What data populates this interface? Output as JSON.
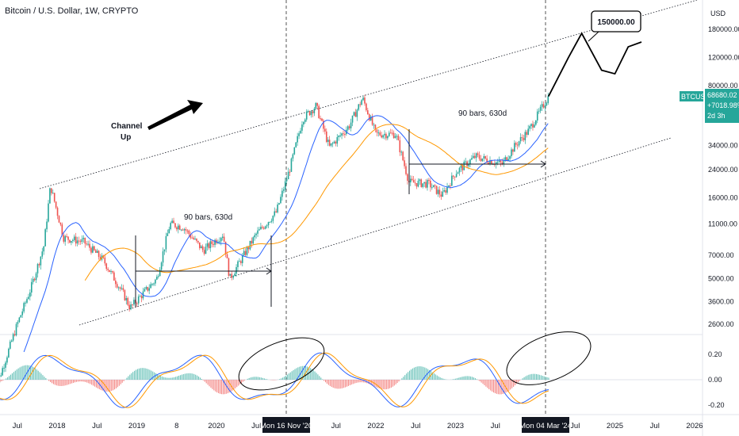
{
  "header": {
    "title": "Bitcoin / U.S. Dollar, 1W, CRYPTO"
  },
  "axis": {
    "currency": "USD",
    "price_ticks": [
      "180000.00",
      "120000.00",
      "80000.00",
      "34000.00",
      "24000.00",
      "16000.00",
      "11000.00",
      "7000.00",
      "5000.00",
      "3600.00",
      "2600.00"
    ],
    "osc_ticks": [
      "0.20",
      "0.00",
      "-0.20"
    ],
    "x_ticks": [
      "Jul",
      "2018",
      "Jul",
      "2019",
      "8",
      "2020",
      "Jul",
      "Jul",
      "2022",
      "Jul",
      "2023",
      "Jul",
      "Jul",
      "2025",
      "Jul",
      "2026"
    ],
    "x_highlight_1": "Mon 16 Nov '20",
    "x_highlight_2": "Mon 04 Mar '24"
  },
  "price_tag": {
    "symbol": "BTCUSD",
    "price": "68680.02",
    "change": "+7018.98%",
    "countdown": "2d 3h",
    "color": "#26a69a"
  },
  "annotations": {
    "target_label": "150000.00",
    "channel_label_1": "Channel",
    "channel_label_2": "Up",
    "bars_label_1": "90 bars, 630d",
    "bars_label_2": "90 bars, 630d"
  },
  "colors": {
    "up": "#26a69a",
    "down": "#ef5350",
    "ma_blue": "#2962ff",
    "ma_orange": "#ff9800",
    "path": "#000000"
  },
  "chart_data": {
    "type": "candlestick",
    "title": "Bitcoin / U.S. Dollar, 1W, CRYPTO",
    "scale": "log",
    "ylim": [
      2300,
      230000
    ],
    "candles_approx": [
      [
        "2017-04",
        1100
      ],
      [
        "2017-07",
        2600
      ],
      [
        "2017-09",
        4300
      ],
      [
        "2017-11",
        8000
      ],
      [
        "2017-12",
        19000
      ],
      [
        "2018-02",
        9000
      ],
      [
        "2018-05",
        8500
      ],
      [
        "2018-08",
        6500
      ],
      [
        "2018-11",
        4000
      ],
      [
        "2018-12",
        3300
      ],
      [
        "2019-04",
        5000
      ],
      [
        "2019-06",
        11000
      ],
      [
        "2019-08",
        10500
      ],
      [
        "2019-11",
        7500
      ],
      [
        "2020-02",
        9500
      ],
      [
        "2020-03",
        5000
      ],
      [
        "2020-07",
        9500
      ],
      [
        "2020-10",
        13000
      ],
      [
        "2020-12",
        24000
      ],
      [
        "2021-02",
        50000
      ],
      [
        "2021-04",
        60000
      ],
      [
        "2021-06",
        33000
      ],
      [
        "2021-09",
        45000
      ],
      [
        "2021-11",
        67000
      ],
      [
        "2022-01",
        40000
      ],
      [
        "2022-04",
        40000
      ],
      [
        "2022-06",
        20000
      ],
      [
        "2022-09",
        19500
      ],
      [
        "2022-11",
        16500
      ],
      [
        "2023-01",
        23000
      ],
      [
        "2023-04",
        29000
      ],
      [
        "2023-08",
        26000
      ],
      [
        "2023-10",
        34000
      ],
      [
        "2023-12",
        42000
      ],
      [
        "2024-03",
        68680
      ]
    ],
    "projection_approx": [
      [
        "2024-03",
        68680
      ],
      [
        "2024-06",
        120000
      ],
      [
        "2024-08",
        170000
      ],
      [
        "2024-11",
        100000
      ],
      [
        "2025-01",
        95000
      ],
      [
        "2025-03",
        140000
      ],
      [
        "2025-05",
        150000
      ]
    ],
    "oscillator": {
      "range": [
        -0.2,
        0.2
      ]
    }
  }
}
